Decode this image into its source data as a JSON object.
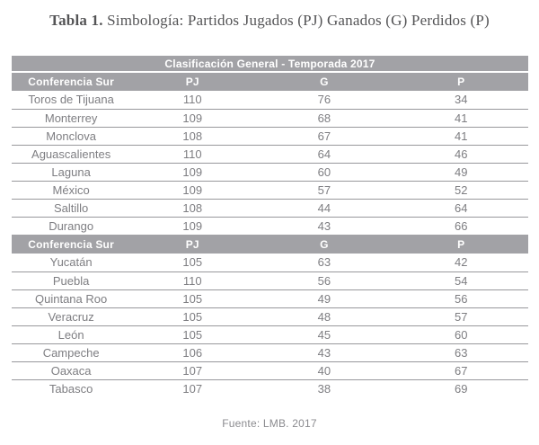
{
  "title": {
    "label": "Tabla 1.",
    "text": "Simbología: Partidos Jugados (PJ) Ganados (G) Perdidos (P)"
  },
  "table": {
    "header": "Clasificación General - Temporada 2017",
    "sections": [
      {
        "header": [
          "Conferencia Sur",
          "PJ",
          "G",
          "P"
        ],
        "rows": [
          {
            "team": "Toros de Tijuana",
            "pj": "110",
            "g": "76",
            "p": "34"
          },
          {
            "team": "Monterrey",
            "pj": "109",
            "g": "68",
            "p": "41"
          },
          {
            "team": "Monclova",
            "pj": "108",
            "g": "67",
            "p": "41"
          },
          {
            "team": "Aguascalientes",
            "pj": "110",
            "g": "64",
            "p": "46"
          },
          {
            "team": "Laguna",
            "pj": "109",
            "g": "60",
            "p": "49"
          },
          {
            "team": "México",
            "pj": "109",
            "g": "57",
            "p": "52"
          },
          {
            "team": "Saltillo",
            "pj": "108",
            "g": "44",
            "p": "64"
          },
          {
            "team": "Durango",
            "pj": "109",
            "g": "43",
            "p": "66"
          }
        ]
      },
      {
        "header": [
          "Conferencia Sur",
          "PJ",
          "G",
          "P"
        ],
        "rows": [
          {
            "team": "Yucatán",
            "pj": "105",
            "g": "63",
            "p": "42"
          },
          {
            "team": "Puebla",
            "pj": "110",
            "g": "56",
            "p": "54"
          },
          {
            "team": "Quintana Roo",
            "pj": "105",
            "g": "49",
            "p": "56"
          },
          {
            "team": "Veracruz",
            "pj": "105",
            "g": "48",
            "p": "57"
          },
          {
            "team": "León",
            "pj": "105",
            "g": "45",
            "p": "60"
          },
          {
            "team": "Campeche",
            "pj": "106",
            "g": "43",
            "p": "63"
          },
          {
            "team": "Oaxaca",
            "pj": "107",
            "g": "40",
            "p": "67"
          },
          {
            "team": "Tabasco",
            "pj": "107",
            "g": "38",
            "p": "69"
          }
        ]
      }
    ]
  },
  "footer": {
    "source": "Fuente: LMB. 2017"
  },
  "colors": {
    "header_bg": "#a2a2a6",
    "header_text": "#ffffff",
    "row_text": "#7e7e82",
    "row_line": "#98989c",
    "title_text": "#545456",
    "footer_text": "#8b8b8f"
  }
}
